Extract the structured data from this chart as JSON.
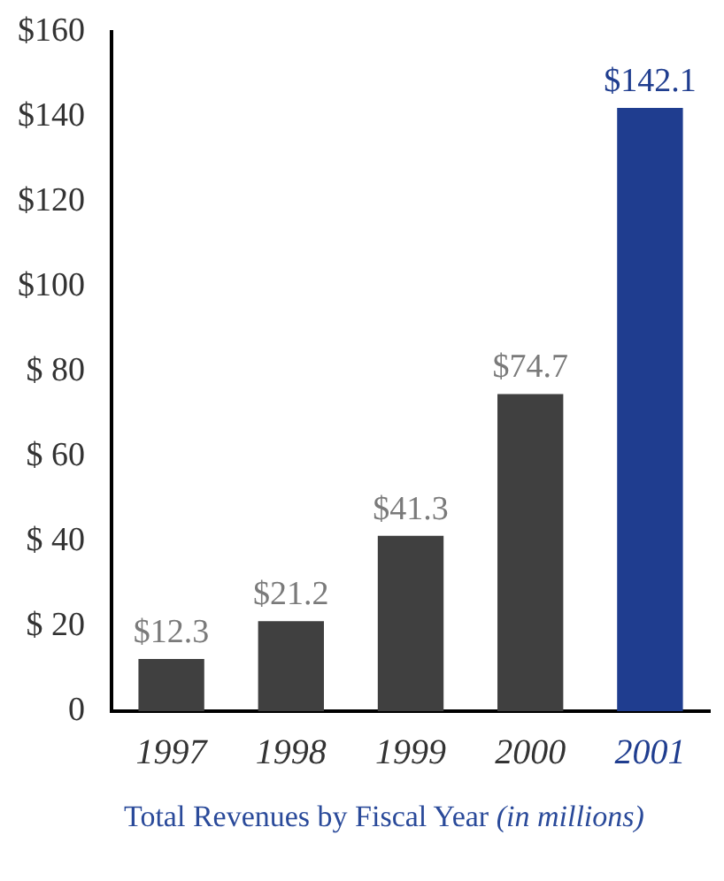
{
  "chart_data": {
    "type": "bar",
    "title": "Total Revenues by Fiscal Year",
    "subtitle": "(in millions)",
    "categories": [
      "1997",
      "1998",
      "1999",
      "2000",
      "2001"
    ],
    "values": [
      12.3,
      21.2,
      41.3,
      74.7,
      142.1
    ],
    "colors": [
      "#404040",
      "#404040",
      "#404040",
      "#404040",
      "#1f3d8f"
    ],
    "value_labels": [
      "$12.3",
      "$21.2",
      "$41.3",
      "$74.7",
      "$142.1"
    ],
    "ylim": [
      0,
      160
    ],
    "yticks": [
      {
        "value": 0,
        "label": "0"
      },
      {
        "value": 20,
        "label": "$ 20"
      },
      {
        "value": 40,
        "label": "$ 40"
      },
      {
        "value": 60,
        "label": "$ 60"
      },
      {
        "value": 80,
        "label": "$ 80"
      },
      {
        "value": 100,
        "label": "$100"
      },
      {
        "value": 120,
        "label": "$120"
      },
      {
        "value": 140,
        "label": "$140"
      },
      {
        "value": 160,
        "label": "$160"
      }
    ],
    "grid": false,
    "legend": false
  }
}
